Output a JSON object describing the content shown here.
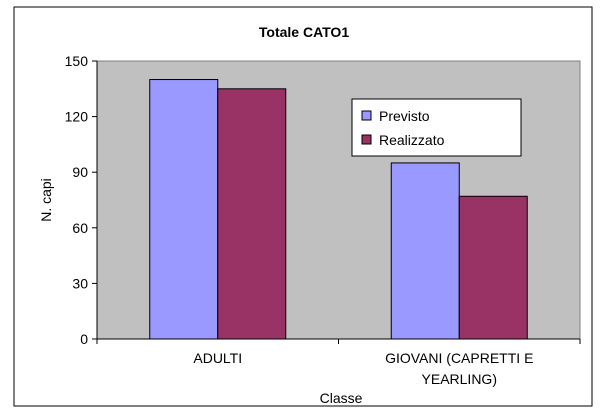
{
  "chart_data": {
    "type": "bar",
    "title": "Totale CATO1",
    "xlabel": "Classe",
    "ylabel": "N. capi",
    "categories": [
      [
        "ADULTI"
      ],
      [
        "GIOVANI (CAPRETTI E",
        "YEARLING)"
      ]
    ],
    "series": [
      {
        "name": "Previsto",
        "values": [
          140,
          95
        ],
        "color": "#9999ff"
      },
      {
        "name": "Realizzato",
        "values": [
          135,
          77
        ],
        "color": "#993366"
      }
    ],
    "ylim": [
      0,
      150
    ],
    "yticks": [
      0,
      30,
      60,
      90,
      120,
      150
    ],
    "plot_background": "#c0c0c0",
    "grid": false,
    "legend_position": "right"
  }
}
